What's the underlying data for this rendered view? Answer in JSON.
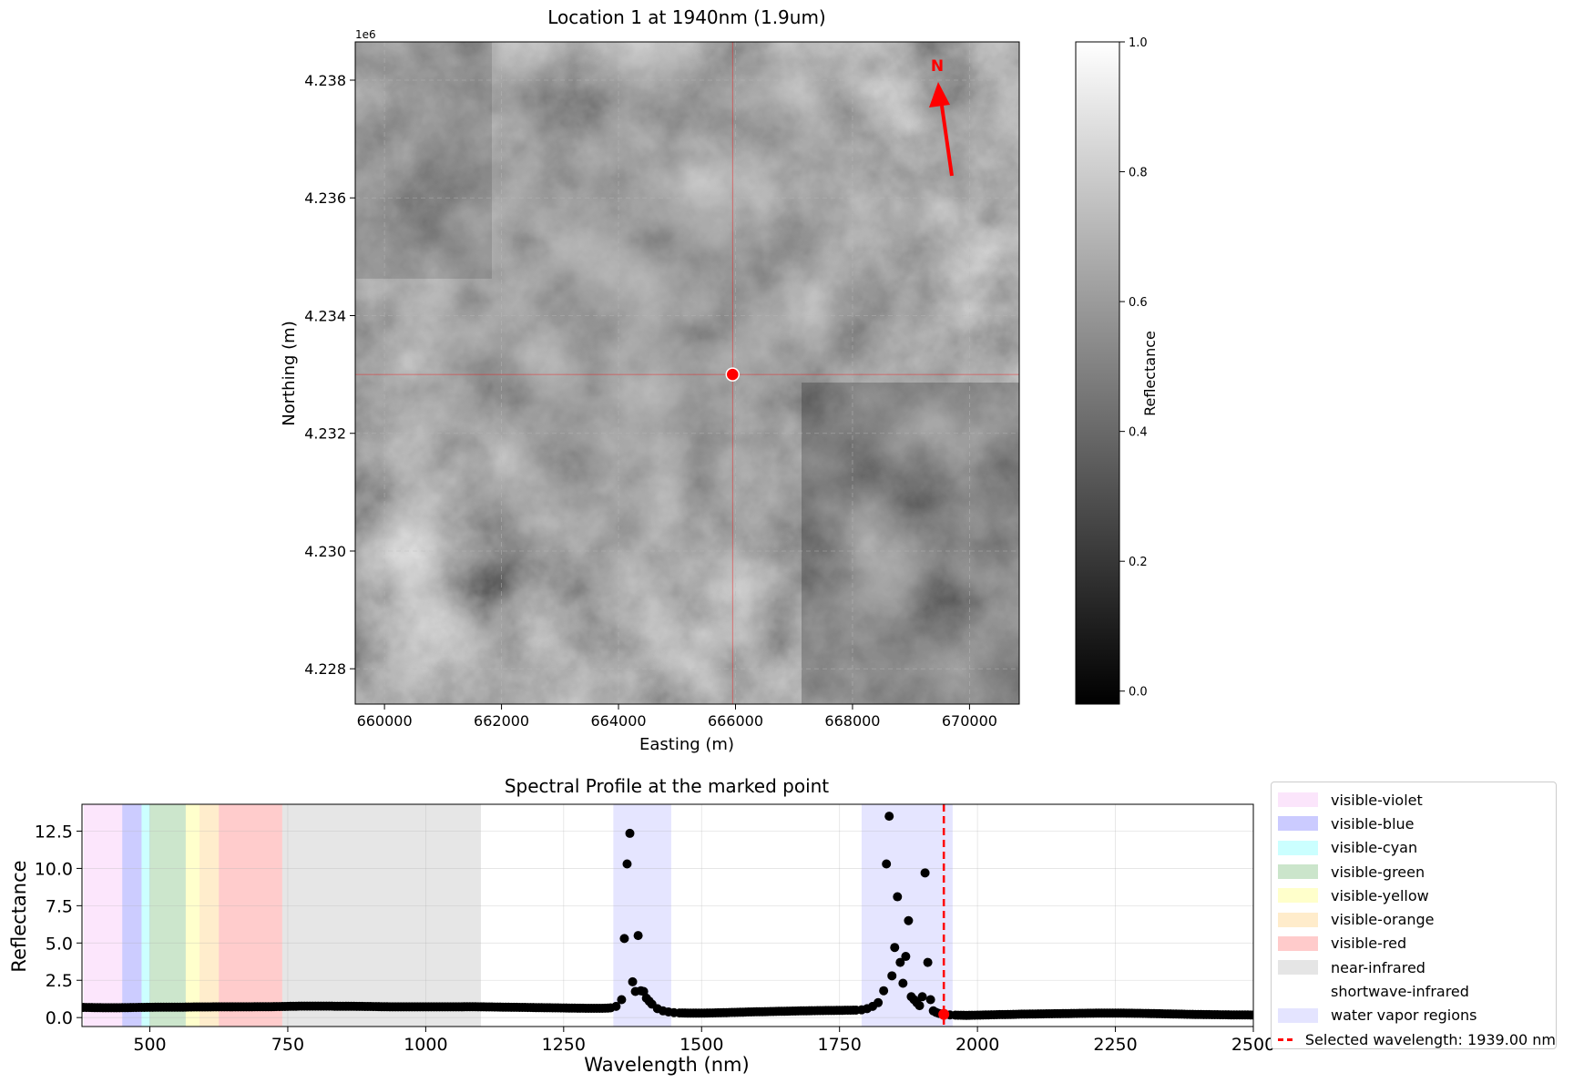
{
  "chart_data": [
    {
      "type": "heatmap",
      "title": "Location 1 at 1940nm (1.9um)",
      "xlabel": "Easting (m)",
      "ylabel": "Northing (m)",
      "y_offset_label": "1e6",
      "xlim": [
        659500,
        670850
      ],
      "ylim": [
        4227400,
        4238650
      ],
      "x_ticks": [
        660000,
        662000,
        664000,
        666000,
        668000,
        670000
      ],
      "x_tick_labels": [
        "660000",
        "662000",
        "664000",
        "666000",
        "668000",
        "670000"
      ],
      "y_ticks": [
        4228000,
        4230000,
        4232000,
        4234000,
        4236000,
        4238000
      ],
      "y_tick_labels": [
        "4.228",
        "4.230",
        "4.232",
        "4.234",
        "4.236",
        "4.238"
      ],
      "grid": true,
      "marker": {
        "x": 665950,
        "y": 4233000,
        "color": "#ff0000"
      },
      "north_arrow": {
        "label": "N",
        "color": "#ff0000"
      },
      "colorbar": {
        "label": "Reflectance",
        "colormap": "gray",
        "range": [
          -0.02,
          1.0
        ],
        "ticks": [
          0.0,
          0.2,
          0.4,
          0.6,
          0.8,
          1.0
        ],
        "tick_labels": [
          "0.0",
          "0.2",
          "0.4",
          "0.6",
          "0.8",
          "1.0"
        ]
      }
    },
    {
      "type": "scatter",
      "title": "Spectral Profile at the marked point",
      "xlabel": "Wavelength (nm)",
      "ylabel": "Reflectance",
      "xlim": [
        377,
        2500
      ],
      "ylim": [
        -0.6,
        14.3
      ],
      "x_ticks": [
        500,
        750,
        1000,
        1250,
        1500,
        1750,
        2000,
        2250,
        2500
      ],
      "x_tick_labels": [
        "500",
        "750",
        "1000",
        "1250",
        "1500",
        "1750",
        "2000",
        "2250",
        "2500"
      ],
      "y_ticks": [
        0,
        2.5,
        5,
        7.5,
        10,
        12.5
      ],
      "y_tick_labels": [
        "0.0",
        "2.5",
        "5.0",
        "7.5",
        "10.0",
        "12.5"
      ],
      "grid": true,
      "legend_position": "outside-right",
      "regions": [
        {
          "name": "visible-violet",
          "start": 380,
          "end": 450,
          "color": "#ee82ee",
          "alpha": 0.2
        },
        {
          "name": "visible-blue",
          "start": 450,
          "end": 485,
          "color": "#0000ff",
          "alpha": 0.2
        },
        {
          "name": "visible-cyan",
          "start": 485,
          "end": 500,
          "color": "#00ffff",
          "alpha": 0.2
        },
        {
          "name": "visible-green",
          "start": 500,
          "end": 565,
          "color": "#008000",
          "alpha": 0.2
        },
        {
          "name": "visible-yellow",
          "start": 565,
          "end": 590,
          "color": "#ffff00",
          "alpha": 0.2
        },
        {
          "name": "visible-orange",
          "start": 590,
          "end": 625,
          "color": "#ffa500",
          "alpha": 0.2
        },
        {
          "name": "visible-red",
          "start": 625,
          "end": 740,
          "color": "#ff0000",
          "alpha": 0.2
        },
        {
          "name": "near-infrared",
          "start": 740,
          "end": 1100,
          "color": "#808080",
          "alpha": 0.2
        },
        {
          "name": "shortwave-infrared",
          "start": 1100,
          "end": 2500,
          "color": "#ffffff",
          "alpha": 0.2
        },
        {
          "name": "water vapor regions",
          "segments": [
            [
              1340,
              1445
            ],
            [
              1790,
              1955
            ]
          ],
          "color": "#0000ff",
          "alpha": 0.1
        }
      ],
      "selected_wavelength": {
        "value": 1939,
        "label": "Selected wavelength: 1939.00 nm",
        "color": "#ff0000",
        "reflectance": 0.22
      },
      "series": [
        {
          "color": "#000000",
          "points": [
            [
              380,
              0.68
            ],
            [
              400,
              0.67
            ],
            [
              420,
              0.66
            ],
            [
              440,
              0.66
            ],
            [
              460,
              0.67
            ],
            [
              480,
              0.68
            ],
            [
              500,
              0.69
            ],
            [
              520,
              0.7
            ],
            [
              540,
              0.7
            ],
            [
              560,
              0.7
            ],
            [
              580,
              0.71
            ],
            [
              600,
              0.71
            ],
            [
              620,
              0.72
            ],
            [
              640,
              0.72
            ],
            [
              660,
              0.72
            ],
            [
              680,
              0.72
            ],
            [
              700,
              0.73
            ],
            [
              720,
              0.73
            ],
            [
              740,
              0.74
            ],
            [
              760,
              0.76
            ],
            [
              780,
              0.77
            ],
            [
              800,
              0.77
            ],
            [
              820,
              0.77
            ],
            [
              840,
              0.76
            ],
            [
              860,
              0.76
            ],
            [
              880,
              0.75
            ],
            [
              900,
              0.74
            ],
            [
              920,
              0.73
            ],
            [
              940,
              0.72
            ],
            [
              960,
              0.72
            ],
            [
              980,
              0.72
            ],
            [
              1000,
              0.72
            ],
            [
              1020,
              0.72
            ],
            [
              1040,
              0.72
            ],
            [
              1060,
              0.72
            ],
            [
              1080,
              0.73
            ],
            [
              1100,
              0.72
            ],
            [
              1120,
              0.71
            ],
            [
              1140,
              0.7
            ],
            [
              1160,
              0.69
            ],
            [
              1180,
              0.68
            ],
            [
              1200,
              0.67
            ],
            [
              1220,
              0.66
            ],
            [
              1240,
              0.65
            ],
            [
              1260,
              0.64
            ],
            [
              1280,
              0.63
            ],
            [
              1300,
              0.62
            ],
            [
              1320,
              0.62
            ],
            [
              1335,
              0.65
            ],
            [
              1345,
              0.75
            ],
            [
              1355,
              1.2
            ],
            [
              1360,
              5.3
            ],
            [
              1365,
              10.3
            ],
            [
              1370,
              12.35
            ],
            [
              1375,
              2.4
            ],
            [
              1380,
              1.75
            ],
            [
              1385,
              5.5
            ],
            [
              1390,
              1.8
            ],
            [
              1395,
              1.75
            ],
            [
              1400,
              1.3
            ],
            [
              1405,
              1.1
            ],
            [
              1410,
              0.9
            ],
            [
              1420,
              0.6
            ],
            [
              1430,
              0.45
            ],
            [
              1440,
              0.38
            ],
            [
              1450,
              0.33
            ],
            [
              1460,
              0.31
            ],
            [
              1480,
              0.3
            ],
            [
              1500,
              0.3
            ],
            [
              1520,
              0.31
            ],
            [
              1540,
              0.33
            ],
            [
              1560,
              0.35
            ],
            [
              1580,
              0.37
            ],
            [
              1600,
              0.39
            ],
            [
              1620,
              0.4
            ],
            [
              1640,
              0.42
            ],
            [
              1660,
              0.43
            ],
            [
              1680,
              0.45
            ],
            [
              1700,
              0.46
            ],
            [
              1720,
              0.47
            ],
            [
              1740,
              0.48
            ],
            [
              1760,
              0.49
            ],
            [
              1780,
              0.5
            ],
            [
              1790,
              0.52
            ],
            [
              1800,
              0.6
            ],
            [
              1810,
              0.75
            ],
            [
              1820,
              1.0
            ],
            [
              1830,
              1.8
            ],
            [
              1835,
              10.3
            ],
            [
              1840,
              13.5
            ],
            [
              1845,
              2.8
            ],
            [
              1850,
              4.7
            ],
            [
              1855,
              8.1
            ],
            [
              1860,
              3.7
            ],
            [
              1865,
              2.3
            ],
            [
              1870,
              4.1
            ],
            [
              1875,
              6.5
            ],
            [
              1880,
              1.4
            ],
            [
              1885,
              1.2
            ],
            [
              1890,
              1.0
            ],
            [
              1895,
              0.8
            ],
            [
              1900,
              1.4
            ],
            [
              1905,
              9.7
            ],
            [
              1910,
              3.7
            ],
            [
              1915,
              1.2
            ],
            [
              1920,
              0.45
            ],
            [
              1925,
              0.35
            ],
            [
              1930,
              0.28
            ],
            [
              1935,
              0.25
            ],
            [
              1940,
              0.22
            ],
            [
              1950,
              0.18
            ],
            [
              1960,
              0.16
            ],
            [
              1980,
              0.15
            ],
            [
              2000,
              0.16
            ],
            [
              2020,
              0.18
            ],
            [
              2040,
              0.2
            ],
            [
              2060,
              0.21
            ],
            [
              2080,
              0.23
            ],
            [
              2100,
              0.24
            ],
            [
              2120,
              0.25
            ],
            [
              2140,
              0.26
            ],
            [
              2160,
              0.27
            ],
            [
              2180,
              0.28
            ],
            [
              2200,
              0.29
            ],
            [
              2220,
              0.3
            ],
            [
              2240,
              0.3
            ],
            [
              2260,
              0.3
            ],
            [
              2280,
              0.29
            ],
            [
              2300,
              0.28
            ],
            [
              2320,
              0.27
            ],
            [
              2340,
              0.25
            ],
            [
              2360,
              0.24
            ],
            [
              2380,
              0.22
            ],
            [
              2400,
              0.21
            ],
            [
              2420,
              0.2
            ],
            [
              2440,
              0.19
            ],
            [
              2460,
              0.18
            ],
            [
              2480,
              0.18
            ],
            [
              2500,
              0.17
            ]
          ]
        }
      ]
    }
  ]
}
